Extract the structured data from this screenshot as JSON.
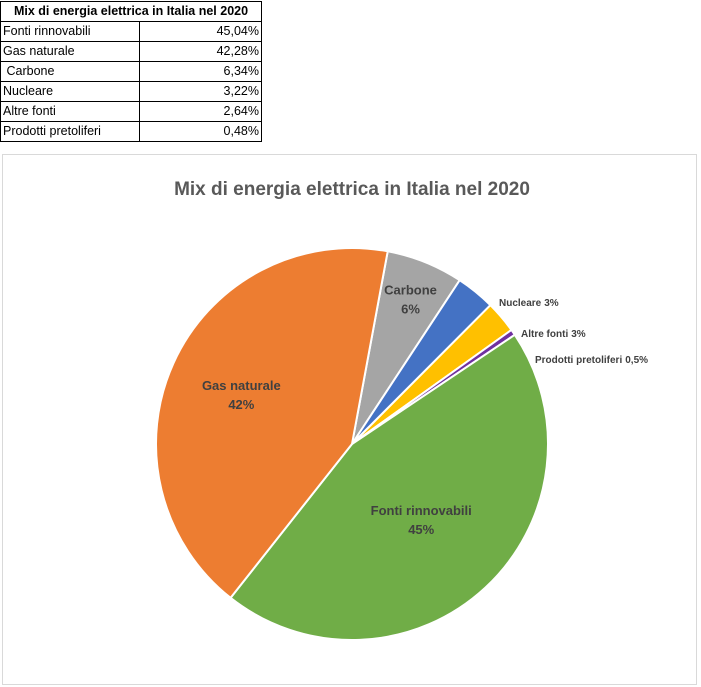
{
  "table": {
    "title": "Mix di energia elettrica in Italia nel 2020",
    "rows": [
      {
        "label": "Fonti rinnovabili",
        "value": "45,04%"
      },
      {
        "label": "Gas naturale",
        "value": "42,28%"
      },
      {
        "label": " Carbone",
        "value": "6,34%"
      },
      {
        "label": "Nucleare",
        "value": "3,22%"
      },
      {
        "label": "Altre fonti",
        "value": "2,64%"
      },
      {
        "label": "Prodotti pretoliferi",
        "value": "0,48%"
      }
    ]
  },
  "chart_data": {
    "type": "pie",
    "title": "Mix di energia elettrica in Italia nel  2020",
    "slices": [
      {
        "name": "Fonti rinnovabili",
        "value": 45.04,
        "label_name": "Fonti rinnovabili",
        "label_pct": "45%",
        "color": "#70ad47",
        "label_position": "inside"
      },
      {
        "name": "Gas naturale",
        "value": 42.28,
        "label_name": "Gas naturale",
        "label_pct": "42%",
        "color": "#ed7d31",
        "label_position": "inside"
      },
      {
        "name": "Carbone",
        "value": 6.34,
        "label_name": "Carbone",
        "label_pct": "6%",
        "color": "#a5a5a5",
        "label_position": "inside"
      },
      {
        "name": "Nucleare",
        "value": 3.22,
        "label_name": "Nucleare",
        "label_pct": "3%",
        "color": "#4472c4",
        "label_position": "outside"
      },
      {
        "name": "Altre fonti",
        "value": 2.64,
        "label_name": "Altre fonti",
        "label_pct": "3%",
        "color": "#ffc000",
        "label_position": "outside"
      },
      {
        "name": "Prodotti pretoliferi",
        "value": 0.48,
        "label_name": "Prodotti pretoliferi",
        "label_pct": "0,5%",
        "color": "#7030a0",
        "label_position": "outside"
      }
    ],
    "start_direction": "clockwise from the edge between Carbone and Gas naturale",
    "legend": "none",
    "data_labels": "category name and percentage"
  }
}
